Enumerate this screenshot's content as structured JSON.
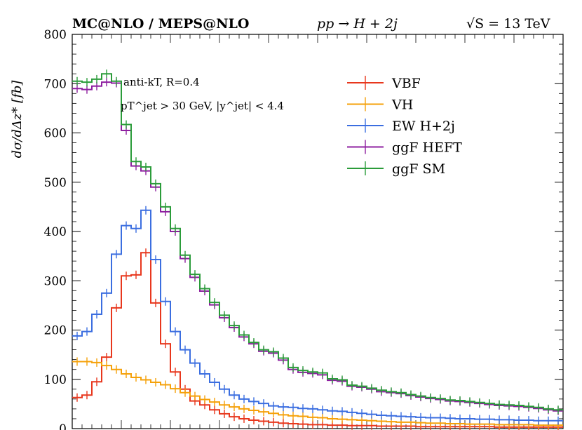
{
  "header": {
    "generators": "MC@NLO / MEPS@NLO",
    "process": "pp → H + 2j",
    "energy": "√S = 13 TeV"
  },
  "annotations": {
    "jet_algo": "anti-kT, R=0.4",
    "jet_cuts": "pT^jet > 30 GeV, |y^jet| < 4.4"
  },
  "chart_data": {
    "type": "line",
    "ylabel": "dσ/dΔz* [fb]",
    "xlabel": "",
    "ylim": [
      0,
      800
    ],
    "yticks": [
      0,
      100,
      200,
      300,
      400,
      500,
      600,
      700,
      800
    ],
    "xlim": [
      0,
      1
    ],
    "x_edges": [
      0.0,
      0.02,
      0.04,
      0.06,
      0.08,
      0.1,
      0.12,
      0.14,
      0.16,
      0.18,
      0.2,
      0.22,
      0.24,
      0.26,
      0.28,
      0.3,
      0.32,
      0.34,
      0.36,
      0.38,
      0.4,
      0.42,
      0.44,
      0.46,
      0.48,
      0.5,
      0.52,
      0.54,
      0.56,
      0.58,
      0.6,
      0.62,
      0.64,
      0.66,
      0.68,
      0.7,
      0.72,
      0.74,
      0.76,
      0.78,
      0.8,
      0.82,
      0.84,
      0.86,
      0.88,
      0.9,
      0.92,
      0.94,
      0.96,
      0.98,
      1.0
    ],
    "legend_position": "top-right",
    "series": [
      {
        "name": "VBF",
        "color": "#e8371d",
        "values": [
          63,
          68,
          95,
          145,
          245,
          310,
          312,
          357,
          255,
          172,
          115,
          80,
          56,
          48,
          38,
          30,
          24,
          20,
          17,
          15,
          13,
          11,
          10,
          9,
          8,
          8,
          7,
          7,
          6,
          6,
          6,
          5,
          5,
          5,
          5,
          4,
          4,
          4,
          4,
          4,
          4,
          4,
          4,
          3,
          3,
          3,
          3,
          3,
          3,
          3
        ]
      },
      {
        "name": "VH",
        "color": "#f5a10a",
        "values": [
          136,
          136,
          134,
          128,
          120,
          111,
          104,
          99,
          94,
          89,
          81,
          73,
          66,
          59,
          54,
          48,
          44,
          40,
          37,
          34,
          31,
          28,
          26,
          25,
          23,
          22,
          20,
          19,
          18,
          17,
          16,
          15,
          14,
          13,
          13,
          12,
          11,
          11,
          10,
          10,
          9,
          9,
          9,
          8,
          8,
          8,
          8,
          7,
          7,
          7
        ]
      },
      {
        "name": "EW H+2j",
        "color": "#3b6ee0",
        "values": [
          188,
          197,
          232,
          275,
          354,
          412,
          406,
          443,
          343,
          258,
          197,
          160,
          133,
          111,
          94,
          80,
          68,
          60,
          55,
          51,
          46,
          44,
          43,
          41,
          40,
          38,
          36,
          35,
          33,
          31,
          29,
          27,
          26,
          25,
          24,
          23,
          22,
          22,
          21,
          20,
          20,
          19,
          19,
          18,
          18,
          17,
          17,
          16,
          16,
          16
        ]
      },
      {
        "name": "ggF HEFT",
        "color": "#8e1fa0",
        "values": [
          690,
          688,
          695,
          703,
          701,
          605,
          533,
          523,
          490,
          440,
          400,
          345,
          307,
          279,
          251,
          225,
          205,
          186,
          172,
          157,
          153,
          139,
          120,
          114,
          112,
          109,
          98,
          96,
          86,
          84,
          80,
          75,
          73,
          71,
          67,
          64,
          61,
          59,
          56,
          55,
          53,
          51,
          49,
          47,
          46,
          45,
          43,
          41,
          38,
          36
        ]
      },
      {
        "name": "ggF SM",
        "color": "#2b9c3a",
        "values": [
          705,
          703,
          709,
          720,
          705,
          617,
          542,
          531,
          497,
          450,
          406,
          352,
          313,
          284,
          256,
          230,
          209,
          190,
          175,
          160,
          156,
          143,
          124,
          118,
          115,
          113,
          101,
          99,
          88,
          86,
          82,
          78,
          75,
          73,
          69,
          66,
          63,
          61,
          58,
          57,
          55,
          53,
          51,
          49,
          48,
          47,
          45,
          43,
          40,
          38
        ]
      }
    ]
  }
}
